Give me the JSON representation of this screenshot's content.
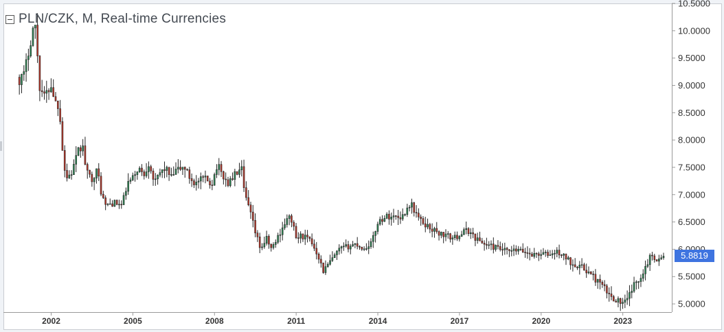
{
  "header": {
    "title": "PLN/CZK, M, Real-time Currencies"
  },
  "price_tag": {
    "label": "5.8819"
  },
  "colors": {
    "up": "#2e8b57",
    "down": "#c0392b",
    "price_tag": "#3e74e0",
    "axis": "#999999"
  },
  "icons": {
    "collapse": "collapse-icon"
  },
  "chart_data": {
    "type": "candlestick",
    "title": "PLN/CZK, M, Real-time Currencies",
    "interval": "monthly",
    "last_value": 5.8819,
    "ylim": [
      4.85,
      10.5
    ],
    "xlim": [
      2000.75,
      2024.8
    ],
    "y_ticks": [
      10.5,
      10.0,
      9.5,
      9.0,
      8.5,
      8.0,
      7.5,
      7.0,
      6.5,
      6.0,
      5.5,
      5.0
    ],
    "y_tick_labels": [
      "10.5000",
      "10.0000",
      "9.5000",
      "9.0000",
      "8.5000",
      "8.0000",
      "7.5000",
      "7.0000",
      "6.5000",
      "6.0000",
      "5.5000",
      "5.0000"
    ],
    "x_ticks": [
      "2002",
      "2005",
      "2008",
      "2011",
      "2014",
      "2017",
      "2020",
      "2023"
    ],
    "x_tick_positions": [
      2002,
      2005,
      2008,
      2011,
      2014,
      2017,
      2020,
      2023
    ],
    "close_path": [
      [
        2000.83,
        9.1
      ],
      [
        2001.0,
        9.2
      ],
      [
        2001.2,
        9.7
      ],
      [
        2001.35,
        10.1
      ],
      [
        2001.45,
        10.05
      ],
      [
        2001.55,
        9.0
      ],
      [
        2001.75,
        8.8
      ],
      [
        2002.0,
        9.0
      ],
      [
        2002.15,
        8.7
      ],
      [
        2002.3,
        8.6
      ],
      [
        2002.45,
        7.6
      ],
      [
        2002.55,
        7.3
      ],
      [
        2002.75,
        7.4
      ],
      [
        2003.0,
        7.8
      ],
      [
        2003.15,
        7.9
      ],
      [
        2003.3,
        7.4
      ],
      [
        2003.5,
        7.3
      ],
      [
        2003.7,
        7.45
      ],
      [
        2003.85,
        7.0
      ],
      [
        2004.0,
        6.8
      ],
      [
        2004.3,
        6.85
      ],
      [
        2004.6,
        6.8
      ],
      [
        2004.8,
        7.2
      ],
      [
        2005.0,
        7.3
      ],
      [
        2005.2,
        7.5
      ],
      [
        2005.4,
        7.35
      ],
      [
        2005.6,
        7.6
      ],
      [
        2005.8,
        7.2
      ],
      [
        2006.0,
        7.4
      ],
      [
        2006.2,
        7.5
      ],
      [
        2006.4,
        7.3
      ],
      [
        2006.6,
        7.45
      ],
      [
        2006.9,
        7.5
      ],
      [
        2007.1,
        7.3
      ],
      [
        2007.3,
        7.2
      ],
      [
        2007.6,
        7.3
      ],
      [
        2007.9,
        7.2
      ],
      [
        2008.1,
        7.55
      ],
      [
        2008.3,
        7.35
      ],
      [
        2008.5,
        7.2
      ],
      [
        2008.8,
        7.4
      ],
      [
        2009.0,
        7.45
      ],
      [
        2009.1,
        7.0
      ],
      [
        2009.3,
        6.7
      ],
      [
        2009.5,
        6.3
      ],
      [
        2009.7,
        6.0
      ],
      [
        2009.9,
        6.2
      ],
      [
        2010.1,
        6.0
      ],
      [
        2010.4,
        6.3
      ],
      [
        2010.6,
        6.5
      ],
      [
        2010.8,
        6.6
      ],
      [
        2011.0,
        6.2
      ],
      [
        2011.2,
        6.25
      ],
      [
        2011.4,
        6.2
      ],
      [
        2011.6,
        6.1
      ],
      [
        2011.8,
        5.9
      ],
      [
        2012.0,
        5.6
      ],
      [
        2012.3,
        5.8
      ],
      [
        2012.6,
        6.0
      ],
      [
        2012.9,
        6.05
      ],
      [
        2013.2,
        6.1
      ],
      [
        2013.5,
        6.0
      ],
      [
        2013.8,
        6.15
      ],
      [
        2014.0,
        6.5
      ],
      [
        2014.3,
        6.6
      ],
      [
        2014.6,
        6.6
      ],
      [
        2014.9,
        6.6
      ],
      [
        2015.2,
        6.85
      ],
      [
        2015.35,
        6.7
      ],
      [
        2015.6,
        6.5
      ],
      [
        2015.9,
        6.4
      ],
      [
        2016.2,
        6.3
      ],
      [
        2016.5,
        6.25
      ],
      [
        2016.8,
        6.2
      ],
      [
        2017.1,
        6.3
      ],
      [
        2017.3,
        6.35
      ],
      [
        2017.6,
        6.2
      ],
      [
        2017.9,
        6.1
      ],
      [
        2018.2,
        6.05
      ],
      [
        2018.5,
        6.0
      ],
      [
        2018.8,
        5.95
      ],
      [
        2019.1,
        5.98
      ],
      [
        2019.4,
        5.95
      ],
      [
        2019.7,
        5.9
      ],
      [
        2020.0,
        5.92
      ],
      [
        2020.3,
        5.9
      ],
      [
        2020.6,
        5.95
      ],
      [
        2020.9,
        5.85
      ],
      [
        2021.1,
        5.75
      ],
      [
        2021.4,
        5.7
      ],
      [
        2021.7,
        5.6
      ],
      [
        2022.0,
        5.45
      ],
      [
        2022.3,
        5.3
      ],
      [
        2022.5,
        5.15
      ],
      [
        2022.7,
        5.1
      ],
      [
        2022.85,
        5.05
      ],
      [
        2023.0,
        5.0
      ],
      [
        2023.15,
        5.05
      ],
      [
        2023.35,
        5.3
      ],
      [
        2023.6,
        5.45
      ],
      [
        2023.85,
        5.7
      ],
      [
        2024.05,
        5.9
      ],
      [
        2024.3,
        5.8
      ],
      [
        2024.55,
        5.88
      ]
    ]
  }
}
